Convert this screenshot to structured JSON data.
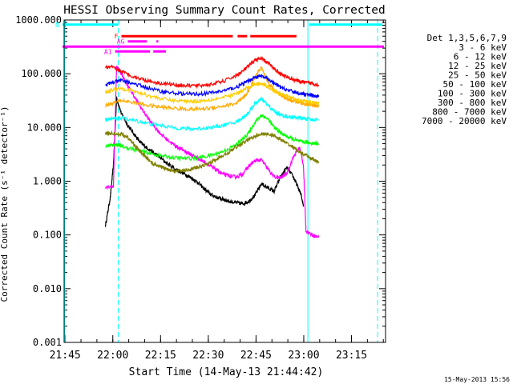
{
  "chart_data": {
    "type": "line",
    "title": "HESSI Observing Summary Count Rates, Corrected",
    "xlabel": "Start Time (14-May-13 21:44:42)",
    "ylabel": "Corrected Count Rate (s⁻¹ detector⁻¹)",
    "x_unit": "minutes from 21:44:42",
    "xlim": [
      0,
      101
    ],
    "ylim": [
      0.001,
      1000
    ],
    "yscale": "log",
    "x_ticks": [
      {
        "label": "21:45",
        "value": 0.3
      },
      {
        "label": "22:00",
        "value": 15.3
      },
      {
        "label": "22:15",
        "value": 30.3
      },
      {
        "label": "22:30",
        "value": 45.3
      },
      {
        "label": "22:45",
        "value": 60.3
      },
      {
        "label": "23:00",
        "value": 75.3
      },
      {
        "label": "23:15",
        "value": 90.3
      }
    ],
    "y_ticks": [
      {
        "label": "1000.000",
        "value": 1000
      },
      {
        "label": "100.000",
        "value": 100
      },
      {
        "label": "10.000",
        "value": 10
      },
      {
        "label": "1.000",
        "value": 1
      },
      {
        "label": "0.100",
        "value": 0.1
      },
      {
        "label": "0.010",
        "value": 0.01
      },
      {
        "label": "0.001",
        "value": 0.001
      }
    ],
    "legend_title": "Det 1,3,5,6,7,9",
    "series": [
      {
        "name": "3 - 6 keV",
        "color": "#000000",
        "x": [
          13,
          14.5,
          15.5,
          16.5,
          18,
          20,
          22,
          24,
          26,
          28,
          30,
          33,
          36,
          38,
          40,
          42,
          44,
          46,
          48,
          50,
          52,
          54,
          56,
          58,
          60,
          62,
          64,
          66,
          68,
          70,
          72,
          73,
          74.5,
          75.2
        ],
        "y": [
          0.15,
          0.5,
          2.0,
          35,
          18,
          11,
          7.5,
          5.2,
          4.2,
          3.4,
          2.8,
          2.0,
          1.55,
          1.35,
          1.15,
          0.95,
          0.72,
          0.57,
          0.5,
          0.46,
          0.42,
          0.4,
          0.38,
          0.42,
          0.55,
          0.9,
          0.75,
          0.65,
          1.2,
          1.8,
          1.2,
          0.9,
          0.55,
          0.35
        ]
      },
      {
        "name": "6 - 12 keV",
        "color": "#ff00ff",
        "x": [
          13,
          15.5,
          16.5,
          18,
          20,
          22,
          24,
          26,
          28,
          30,
          32,
          34,
          36,
          38,
          40,
          42,
          44,
          46,
          48,
          50,
          52,
          54,
          56,
          58,
          60,
          62,
          64,
          66,
          68,
          70,
          72,
          74,
          75.2,
          76,
          78,
          80
        ],
        "y": [
          0.8,
          0.8,
          140,
          100,
          60,
          38,
          24,
          16,
          11,
          8,
          6.2,
          5.0,
          4.2,
          3.6,
          3.1,
          2.7,
          2.3,
          1.9,
          1.6,
          1.35,
          1.25,
          1.2,
          1.35,
          1.9,
          2.4,
          2.5,
          1.7,
          1.2,
          1.15,
          1.4,
          2.8,
          4.3,
          2.0,
          0.12,
          0.1,
          0.09
        ]
      },
      {
        "name": "12 - 25 keV",
        "color": "#00ff00",
        "x": [
          13,
          15,
          16.5,
          18,
          22,
          26,
          30,
          34,
          38,
          42,
          46,
          50,
          54,
          56,
          58,
          60,
          62,
          64,
          66,
          68,
          70,
          72,
          74,
          76,
          78,
          80
        ],
        "y": [
          4.5,
          4.7,
          4.8,
          4.5,
          3.9,
          3.4,
          3.0,
          2.75,
          2.65,
          2.7,
          3.0,
          3.6,
          4.7,
          6.0,
          8.0,
          12.5,
          17,
          14.5,
          10,
          8.0,
          6.8,
          6.0,
          5.5,
          5.3,
          5.1,
          5.0
        ]
      },
      {
        "name": "25 - 50 keV",
        "color": "#00ffff",
        "x": [
          13,
          15,
          18,
          22,
          26,
          30,
          34,
          38,
          42,
          46,
          50,
          54,
          56,
          58,
          60,
          62,
          64,
          66,
          68,
          70,
          72,
          74,
          76,
          78,
          80
        ],
        "y": [
          14,
          14.5,
          15,
          13.5,
          12,
          11,
          10,
          9.5,
          9.5,
          10,
          11,
          12.5,
          15,
          19,
          28,
          34,
          26,
          20,
          17,
          16,
          15.5,
          15,
          14.5,
          14,
          14
        ]
      },
      {
        "name": "50 - 100 keV",
        "color": "#ffaa00",
        "x": [
          13,
          15,
          18,
          22,
          26,
          30,
          34,
          38,
          42,
          46,
          50,
          54,
          56,
          58,
          60,
          62,
          64,
          66,
          68,
          70,
          72,
          74,
          76,
          78,
          80
        ],
        "y": [
          26,
          28,
          32,
          29,
          26,
          24,
          23,
          22,
          22,
          23,
          25,
          28,
          34,
          48,
          90,
          130,
          70,
          50,
          40,
          34,
          31,
          29,
          27,
          26,
          25
        ]
      },
      {
        "name": "100 - 300 keV",
        "color": "#ff0000",
        "x": [
          13,
          15,
          18,
          22,
          26,
          30,
          34,
          38,
          42,
          46,
          50,
          54,
          56,
          58,
          60,
          62,
          64,
          66,
          68,
          70,
          72,
          74,
          76,
          78,
          80
        ],
        "y": [
          130,
          132,
          110,
          88,
          75,
          67,
          63,
          60,
          60,
          63,
          72,
          92,
          110,
          140,
          180,
          190,
          160,
          125,
          100,
          87,
          78,
          72,
          68,
          66,
          62
        ]
      },
      {
        "name": "300 - 800 keV",
        "color": "#0000ff",
        "x": [
          13,
          15,
          18,
          22,
          26,
          30,
          34,
          38,
          42,
          46,
          50,
          54,
          56,
          58,
          60,
          62,
          64,
          66,
          68,
          70,
          72,
          74,
          76,
          78,
          80
        ],
        "y": [
          62,
          68,
          75,
          65,
          55,
          48,
          44,
          42,
          42,
          44,
          48,
          56,
          64,
          74,
          86,
          90,
          80,
          66,
          56,
          50,
          46,
          43,
          41,
          39,
          37
        ]
      },
      {
        "name": "800 - 7000 keV",
        "color": "#ffcc00",
        "x": [
          13,
          15,
          18,
          22,
          26,
          30,
          34,
          38,
          42,
          46,
          50,
          54,
          56,
          58,
          60,
          62,
          64,
          66,
          68,
          70,
          72,
          74,
          76,
          78,
          80
        ],
        "y": [
          46,
          50,
          54,
          47,
          40,
          35,
          32,
          31,
          31,
          33,
          36,
          42,
          48,
          56,
          64,
          66,
          58,
          48,
          42,
          38,
          35,
          32,
          30,
          29,
          28
        ]
      },
      {
        "name": "7000 - 20000 keV",
        "color": "#808000",
        "x": [
          13,
          15,
          18,
          20,
          22,
          24,
          26,
          28,
          30,
          32,
          34,
          36,
          38,
          40,
          42,
          44,
          46,
          48,
          50,
          52,
          54,
          56,
          58,
          60,
          62,
          64,
          66,
          68,
          70,
          72,
          74,
          76,
          78,
          80
        ],
        "y": [
          7.5,
          7.8,
          7.5,
          6.5,
          4.8,
          3.5,
          2.7,
          2.1,
          1.9,
          1.7,
          1.6,
          1.55,
          1.6,
          1.7,
          1.8,
          2.0,
          2.2,
          2.6,
          3.0,
          3.5,
          4.3,
          5.0,
          6.0,
          7.0,
          7.5,
          7.6,
          7.0,
          6.0,
          5.0,
          4.3,
          3.5,
          3.0,
          2.6,
          2.2
        ]
      }
    ],
    "flags": [
      {
        "label": "N",
        "color": "#00ffff",
        "value": 820,
        "segments": [
          [
            -0.5,
            17
          ],
          [
            77,
            100
          ]
        ]
      },
      {
        "label": "F",
        "color": "#ff0000",
        "value": 500,
        "segments": [
          [
            18,
            53
          ],
          [
            54.5,
            57.5
          ],
          [
            58.5,
            73
          ]
        ]
      },
      {
        "label": "AG",
        "color": "#ff00ff",
        "value": 400,
        "segments": [
          [
            20,
            26
          ],
          [
            29,
            29.6
          ]
        ]
      },
      {
        "label": "A1",
        "color": "#ff00ff",
        "value": 260,
        "segments": [
          [
            16,
            27
          ],
          [
            28,
            32
          ]
        ]
      },
      {
        "label": "",
        "color": "#ff00ff",
        "value": 320,
        "segments": [
          [
            -0.5,
            100.5
          ]
        ]
      }
    ],
    "vlines": [
      {
        "x": 17,
        "style": "dashed",
        "color": "#00ffff"
      },
      {
        "x": 76.6,
        "style": "solid",
        "color": "#00ffff"
      },
      {
        "x": 98.5,
        "style": "dashed",
        "color": "#00ffff"
      },
      {
        "x": 0.2,
        "style": "solid",
        "color": "#00ffff"
      }
    ],
    "grid": false,
    "legend_position": "right",
    "footer_timestamp": "15-May-2013 15:56"
  }
}
